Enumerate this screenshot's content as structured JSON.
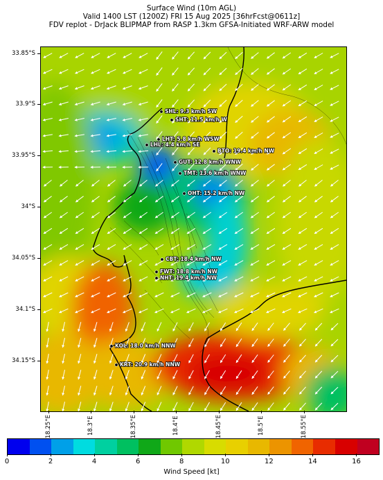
{
  "title": {
    "line1": "Surface Wind (10m AGL)",
    "line2": "Valid 1400 LST (1200Z) FRI 15 Aug 2025 [36hrFcst@0611z]",
    "line3": "FDV replot - DrJack BLIPMAP from RASP 1.3km GFSA-Initiated WRF-ARW model"
  },
  "latitude_labels": [
    "33.85°S",
    "33.9°S",
    "33.95°S",
    "34°S",
    "34.05°S",
    "34.1°S",
    "34.15°S"
  ],
  "longitude_labels": [
    "18.25°E",
    "18.3°E",
    "18.35°E",
    "18.4°E",
    "18.45°E",
    "18.5°E",
    "18.55°E"
  ],
  "stations": [
    {
      "code": "SHL",
      "text": "SHL: 9.3 km/h SW",
      "speed_kmh": 9.3,
      "dir": "SW"
    },
    {
      "code": "SHT",
      "text": "SHT: 11.5 km/h W",
      "speed_kmh": 11.5,
      "dir": "W"
    },
    {
      "code": "LHT",
      "text": "LHT: 5.8 km/h WSW",
      "speed_kmh": 5.8,
      "dir": "WSW"
    },
    {
      "code": "LHL",
      "text": "LHL: 4.4 km/h SE",
      "speed_kmh": 4.4,
      "dir": "SE"
    },
    {
      "code": "BTO",
      "text": "BTO: 19.4 km/h NW",
      "speed_kmh": 19.4,
      "dir": "NW"
    },
    {
      "code": "GUT",
      "text": "GUT: 12.8 km/h WNW",
      "speed_kmh": 12.8,
      "dir": "WNW"
    },
    {
      "code": "TMT",
      "text": "TMT: 13.6 km/h WNW",
      "speed_kmh": 13.6,
      "dir": "WNW"
    },
    {
      "code": "OHT",
      "text": "OHT: 15.2 km/h NW",
      "speed_kmh": 15.2,
      "dir": "NW"
    },
    {
      "code": "CBT",
      "text": "CBT: 18.4 km/h NW",
      "speed_kmh": 18.4,
      "dir": "NW"
    },
    {
      "code": "FWT",
      "text": "FWT: 18.8 km/h NW",
      "speed_kmh": 18.8,
      "dir": "NW"
    },
    {
      "code": "NHT",
      "text": "NHT: 19.4 km/h NW",
      "speed_kmh": 19.4,
      "dir": "NW"
    },
    {
      "code": "KOL",
      "text": "KOL: 18.0 km/h NNW",
      "speed_kmh": 18.0,
      "dir": "NNW"
    },
    {
      "code": "KRT",
      "text": "KRT: 20.9 km/h NNW",
      "speed_kmh": 20.9,
      "dir": "NNW"
    }
  ],
  "colorbar": {
    "label": "Wind Speed [kt]",
    "tick_labels": [
      "0",
      "2",
      "4",
      "6",
      "8",
      "10",
      "12",
      "14",
      "16"
    ],
    "min": 0,
    "max": 17,
    "colors": [
      "#0000ee",
      "#0050f0",
      "#00a0e8",
      "#00dce0",
      "#00d0a0",
      "#00c060",
      "#10a818",
      "#70c800",
      "#b0d800",
      "#d8dc00",
      "#e8d000",
      "#e8b800",
      "#ec9400",
      "#f06400",
      "#e82c00",
      "#d80000",
      "#c00020"
    ]
  }
}
